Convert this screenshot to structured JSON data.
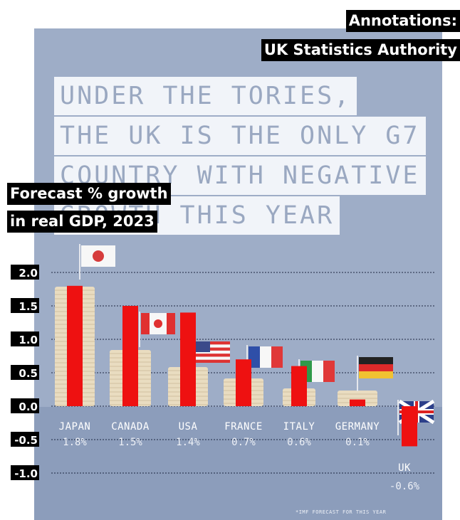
{
  "annotations": {
    "title": "Annotations:",
    "source": "UK Statistics Authority",
    "chart_label_line1": "Forecast % growth",
    "chart_label_line2": "in real GDP, 2023"
  },
  "poster": {
    "headline_lines": [
      "UNDER THE TORIES,",
      "THE UK IS THE ONLY G7",
      "COUNTRY WITH NEGATIVE",
      "GROWTH THIS YEAR"
    ],
    "footnote": "*IMF FORECAST FOR THIS YEAR"
  },
  "chart_data": {
    "type": "bar",
    "categories": [
      "JAPAN",
      "CANADA",
      "USA",
      "FRANCE",
      "ITALY",
      "GERMANY",
      "UK"
    ],
    "value_labels": [
      "1.8%",
      "1.5%",
      "1.4%",
      "0.7%",
      "0.6%",
      "0.1%",
      "-0.6%"
    ],
    "values": [
      1.8,
      1.5,
      1.4,
      0.7,
      0.6,
      0.1,
      -0.6
    ],
    "ylim": [
      -1.0,
      2.0
    ],
    "y_ticks": [
      "2.0",
      "1.5",
      "1.0",
      "0.5",
      "0.0",
      "-0.5",
      "-1.0"
    ],
    "y_tick_values": [
      2.0,
      1.5,
      1.0,
      0.5,
      0.0,
      -0.5,
      -1.0
    ],
    "grid": true,
    "bar_color": "#ee1111",
    "coin_color": "#e9dcc0",
    "flag_icons": [
      "japan-flag-icon",
      "canada-flag-icon",
      "usa-flag-icon",
      "france-flag-icon",
      "italy-flag-icon",
      "germany-flag-icon",
      "uk-flag-icon"
    ]
  }
}
